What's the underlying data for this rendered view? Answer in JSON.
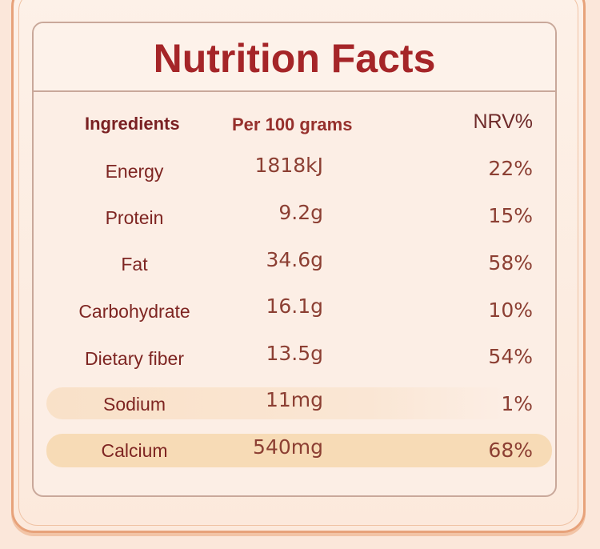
{
  "title": "Nutrition Facts",
  "headers": {
    "ingredients": "Ingredients",
    "per": "Per 100 grams",
    "nrv": "NRV%"
  },
  "rows": [
    {
      "name": "Energy",
      "per": "1818kJ",
      "nrv": "22%"
    },
    {
      "name": "Protein",
      "per": "9.2g",
      "nrv": "15%"
    },
    {
      "name": "Fat",
      "per": "34.6g",
      "nrv": "58%"
    },
    {
      "name": "Carbohydrate",
      "per": "16.1g",
      "nrv": "10%"
    },
    {
      "name": "Dietary fiber",
      "per": "13.5g",
      "nrv": "54%"
    },
    {
      "name": "Sodium",
      "per": "11mg",
      "nrv": "1%"
    },
    {
      "name": "Calcium",
      "per": "540mg",
      "nrv": "68%"
    }
  ],
  "colors": {
    "title": "#a52528",
    "text": "#7e2522",
    "value": "#8c3f33",
    "highlight": "#f7dbb6",
    "border": "#c9a89a",
    "background": "#fbe7da"
  }
}
